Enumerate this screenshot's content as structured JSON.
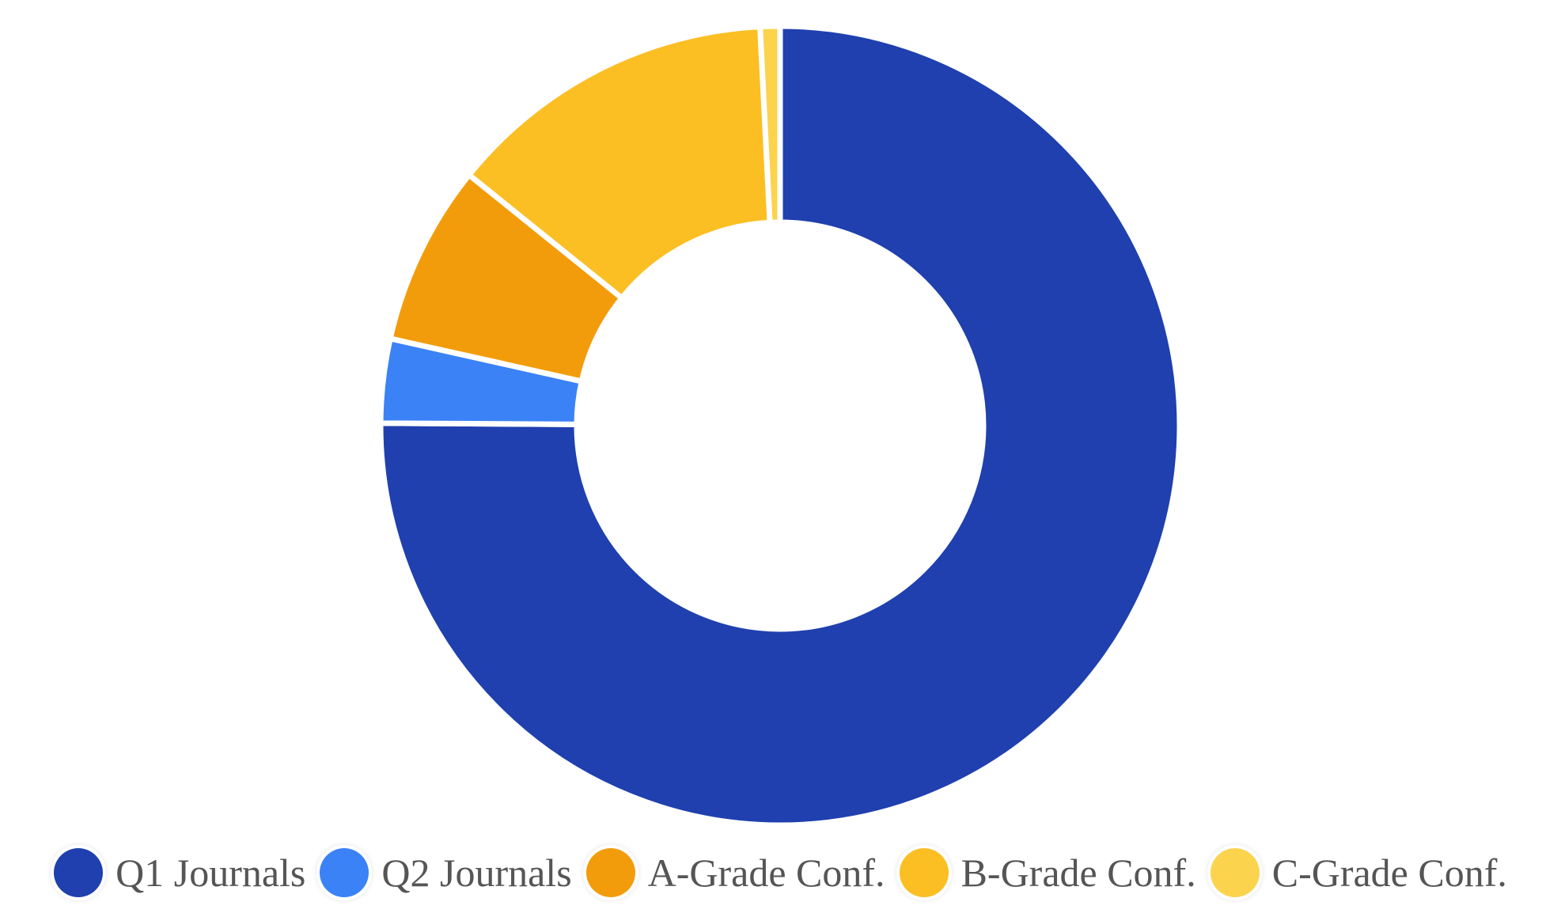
{
  "chart_data": {
    "type": "pie",
    "variant": "doughnut",
    "categories": [
      "Q1 Journals",
      "Q2 Journals",
      "A-Grade Conf.",
      "B-Grade Conf.",
      "C-Grade Conf."
    ],
    "values": [
      75.1,
      3.4,
      7.3,
      13.4,
      0.8
    ],
    "unit": "%",
    "colors": [
      "#1f40ae",
      "#3b82f6",
      "#f39c0b",
      "#fbbf24",
      "#fcd34d"
    ],
    "legend_position": "bottom",
    "title": ""
  }
}
